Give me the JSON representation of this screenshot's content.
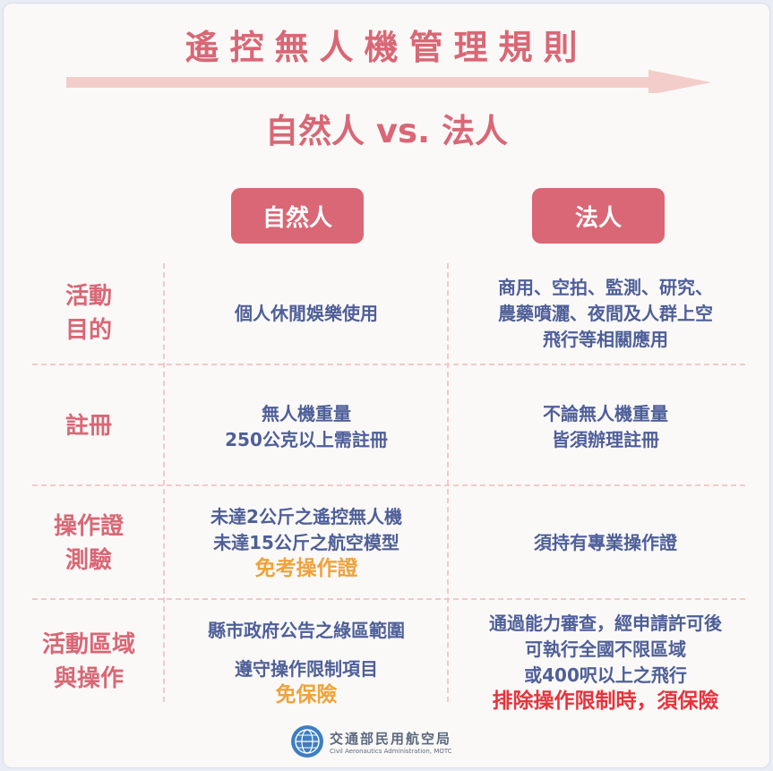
{
  "title": "遙控無人機管理規則",
  "subtitle": "自然人 vs. 法人",
  "headers": {
    "natural": "自然人",
    "legal": "法人"
  },
  "rows": [
    {
      "label": [
        "活動",
        "目的"
      ],
      "natural": [
        "個人休閒娛樂使用"
      ],
      "legal": [
        "商用、空拍、監測、研究、",
        "農藥噴灑、夜間及人群上空",
        "飛行等相關應用"
      ]
    },
    {
      "label": [
        "註冊"
      ],
      "natural": [
        "無人機重量",
        "250公克以上需註冊"
      ],
      "legal": [
        "不論無人機重量",
        "皆須辦理註冊"
      ]
    },
    {
      "label": [
        "操作證",
        "測驗"
      ],
      "natural": [
        "未達2公斤之遙控無人機",
        "未達15公斤之航空模型"
      ],
      "natural_highlight": "免考操作證",
      "legal": [
        "須持有專業操作證"
      ]
    },
    {
      "label": [
        "活動區域",
        "與操作"
      ],
      "natural": [
        "縣市政府公告之綠區範圍",
        "遵守操作限制項目"
      ],
      "natural_highlight": "免保險",
      "legal": [
        "通過能力審查，經申請許可後",
        "可執行全國不限區域",
        "或400呎以上之飛行"
      ],
      "legal_highlight": "排除操作限制時，須保險"
    }
  ],
  "footer": {
    "org_cn": "交通部民用航空局",
    "org_en": "Civil Aeronautics Administration, MOTC",
    "logo_icon": "globe-logo-icon"
  },
  "colors": {
    "accent": "#d96775",
    "body_text": "#4e5f99",
    "highlight_orange": "#f0a23a",
    "highlight_red": "#e8333b"
  }
}
